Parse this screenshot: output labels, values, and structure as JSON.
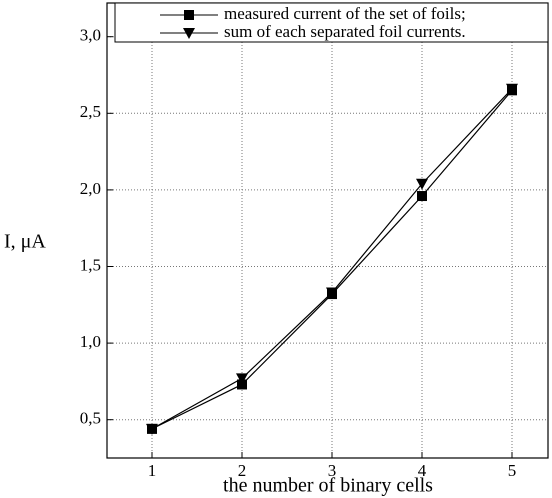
{
  "chart_data": {
    "type": "line",
    "x": [
      1,
      2,
      3,
      4,
      5
    ],
    "series": [
      {
        "name": "measured current of the set of foils;",
        "color": "#000000",
        "marker": "square",
        "values": [
          0.44,
          0.73,
          1.32,
          1.96,
          2.65
        ]
      },
      {
        "name": "sum of each separated foil currents.",
        "color": "#000000",
        "marker": "triangle-down",
        "values": [
          0.44,
          0.77,
          1.33,
          2.04,
          2.66
        ]
      }
    ],
    "xlabel": "the number of binary cells",
    "ylabel": "I, μA",
    "xlim": [
      0.5,
      5.4
    ],
    "ylim": [
      0.25,
      3.22
    ],
    "xticks": [
      1,
      2,
      3,
      4,
      5
    ],
    "yticks": [
      {
        "value": 0.5,
        "label": "0,5"
      },
      {
        "value": 1.0,
        "label": "1,0"
      },
      {
        "value": 1.5,
        "label": "1,5"
      },
      {
        "value": 2.0,
        "label": "2,0"
      },
      {
        "value": 2.5,
        "label": "2,5"
      },
      {
        "value": 3.0,
        "label": "3,0"
      }
    ],
    "grid": true,
    "legend": "top-right"
  }
}
